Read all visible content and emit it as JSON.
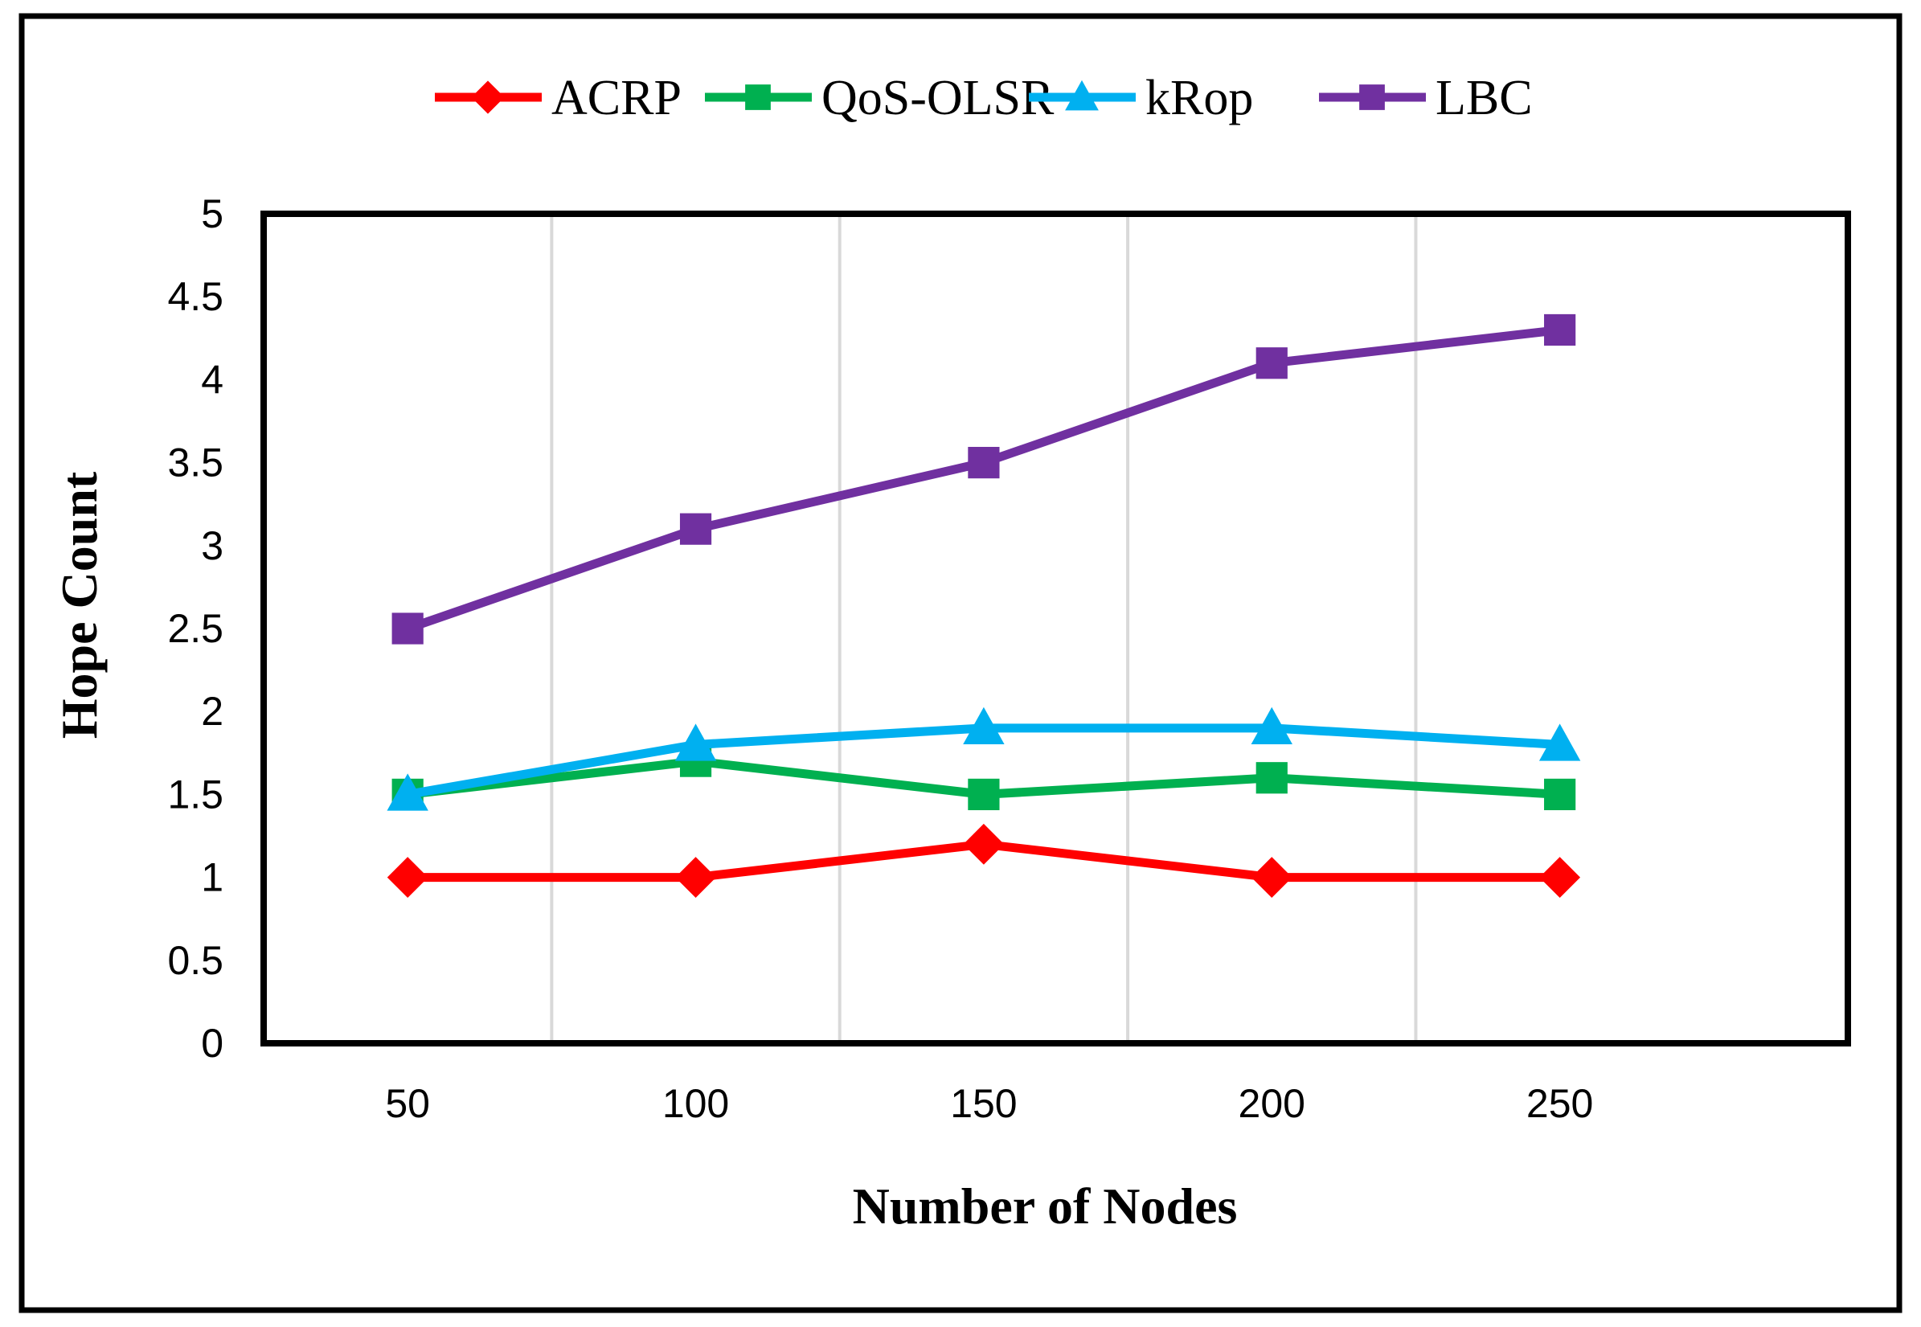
{
  "chart_data": {
    "type": "line",
    "title": "",
    "xlabel": "Number of Nodes",
    "ylabel": "Hope Count",
    "categories": [
      "50",
      "100",
      "150",
      "200",
      "250"
    ],
    "ylim": [
      0,
      5
    ],
    "y_ticks": [
      "0",
      "0.5",
      "1",
      "1.5",
      "2",
      "2.5",
      "3",
      "3.5",
      "4",
      "4.5",
      "5"
    ],
    "grid": "vertical",
    "legend_position": "top",
    "series": [
      {
        "name": "ACRP",
        "color": "#ff0000",
        "marker": "diamond",
        "values": [
          1.0,
          1.0,
          1.2,
          1.0,
          1.0
        ]
      },
      {
        "name": "QoS-OLSR",
        "color": "#00b050",
        "marker": "square",
        "values": [
          1.5,
          1.7,
          1.5,
          1.6,
          1.5
        ]
      },
      {
        "name": "kRop",
        "color": "#00b0f0",
        "marker": "triangle",
        "values": [
          1.5,
          1.8,
          1.9,
          1.9,
          1.8
        ]
      },
      {
        "name": "LBC",
        "color": "#7030a0",
        "marker": "square",
        "values": [
          2.5,
          3.1,
          3.5,
          4.1,
          4.3
        ]
      }
    ]
  }
}
